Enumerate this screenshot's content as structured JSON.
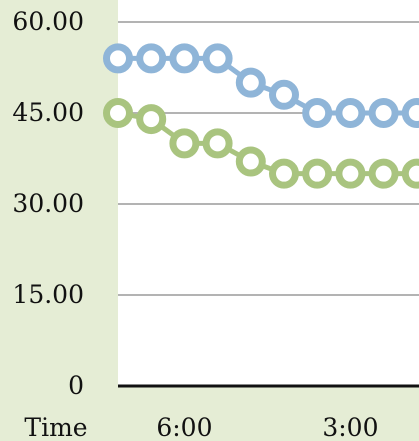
{
  "chart_data": {
    "type": "line",
    "title": "",
    "xlabel": "Time",
    "ylabel": "",
    "ylim": [
      0,
      60
    ],
    "y_ticks": [
      "0",
      "15.00",
      "30.00",
      "45.00",
      "60.00"
    ],
    "x_tick_labels": [
      {
        "label": "6:00",
        "at_index": 2
      },
      {
        "label": "3:00",
        "at_index": 7
      }
    ],
    "grid": true,
    "legend": "none",
    "series": [
      {
        "values": [
          54,
          54,
          54,
          54,
          50,
          48,
          45,
          45,
          45,
          45
        ],
        "color": "#8fb5d8"
      },
      {
        "values": [
          45,
          44,
          40,
          40,
          37,
          35,
          35,
          35,
          35,
          35
        ],
        "color": "#a9c47f"
      }
    ],
    "background": {
      "outer": "#e5edd5",
      "plot": "#ffffff",
      "gridline": "#b3b3b3",
      "axis": "#111111"
    }
  }
}
